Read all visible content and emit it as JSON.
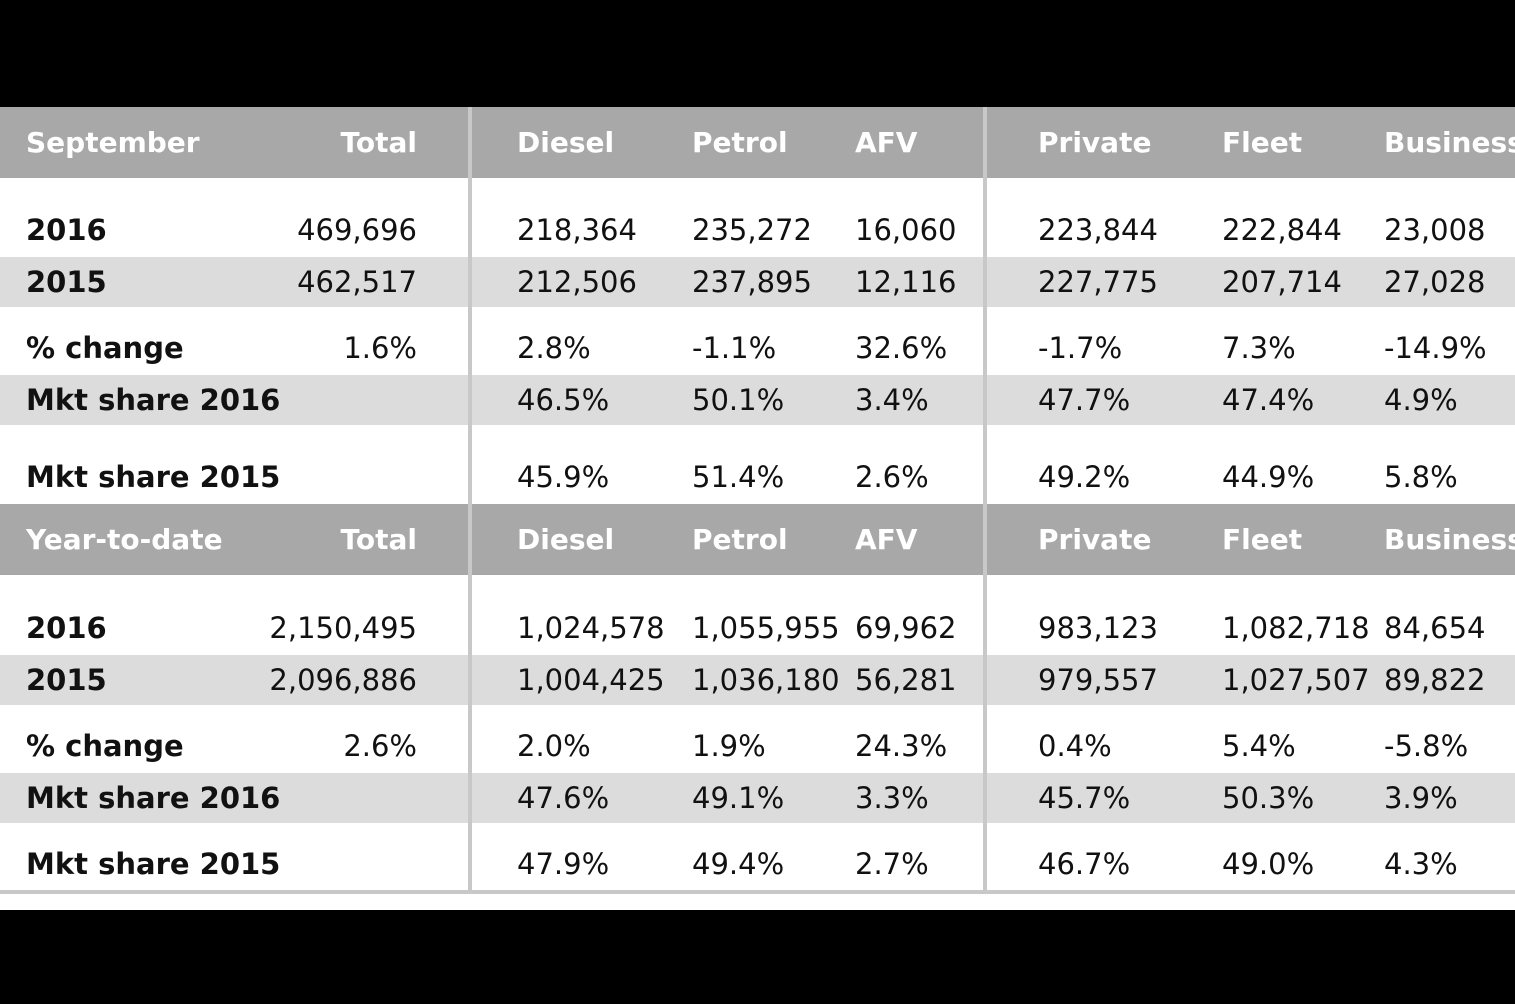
{
  "chart_data": {
    "type": "table",
    "sections": [
      {
        "header": [
          "September",
          "Total",
          "Diesel",
          "Petrol",
          "AFV",
          "Private",
          "Fleet",
          "Business"
        ],
        "rows": [
          [
            "2016",
            "469,696",
            "218,364",
            "235,272",
            "16,060",
            "223,844",
            "222,844",
            "23,008"
          ],
          [
            "2015",
            "462,517",
            "212,506",
            "237,895",
            "12,116",
            "227,775",
            "207,714",
            "27,028"
          ],
          [
            "% change",
            "1.6%",
            "2.8%",
            "-1.1%",
            "32.6%",
            "-1.7%",
            "7.3%",
            "-14.9%"
          ],
          [
            "Mkt share 2016",
            "",
            "46.5%",
            "50.1%",
            "3.4%",
            "47.7%",
            "47.4%",
            "4.9%"
          ],
          [
            "Mkt share 2015",
            "",
            "45.9%",
            "51.4%",
            "2.6%",
            "49.2%",
            "44.9%",
            "5.8%"
          ]
        ]
      },
      {
        "header": [
          "Year-to-date",
          "Total",
          "Diesel",
          "Petrol",
          "AFV",
          "Private",
          "Fleet",
          "Business"
        ],
        "rows": [
          [
            "2016",
            "2,150,495",
            "1,024,578",
            "1,055,955",
            "69,962",
            "983,123",
            "1,082,718",
            "84,654"
          ],
          [
            "2015",
            "2,096,886",
            "1,004,425",
            "1,036,180",
            "56,281",
            "979,557",
            "1,027,507",
            "89,822"
          ],
          [
            "% change",
            "2.6%",
            "2.0%",
            "1.9%",
            "24.3%",
            "0.4%",
            "5.4%",
            "-5.8%"
          ],
          [
            "Mkt share 2016",
            "",
            "47.6%",
            "49.1%",
            "3.3%",
            "45.7%",
            "50.3%",
            "3.9%"
          ],
          [
            "Mkt share 2015",
            "",
            "47.9%",
            "49.4%",
            "2.7%",
            "46.7%",
            "49.0%",
            "4.3%"
          ]
        ]
      }
    ]
  },
  "colors": {
    "header_bg": "#a8a8a8",
    "header_text": "#ffffff",
    "shaded_row_bg": "#dcdcdc",
    "divider": "#c8c8c8",
    "frame": "#000000"
  }
}
